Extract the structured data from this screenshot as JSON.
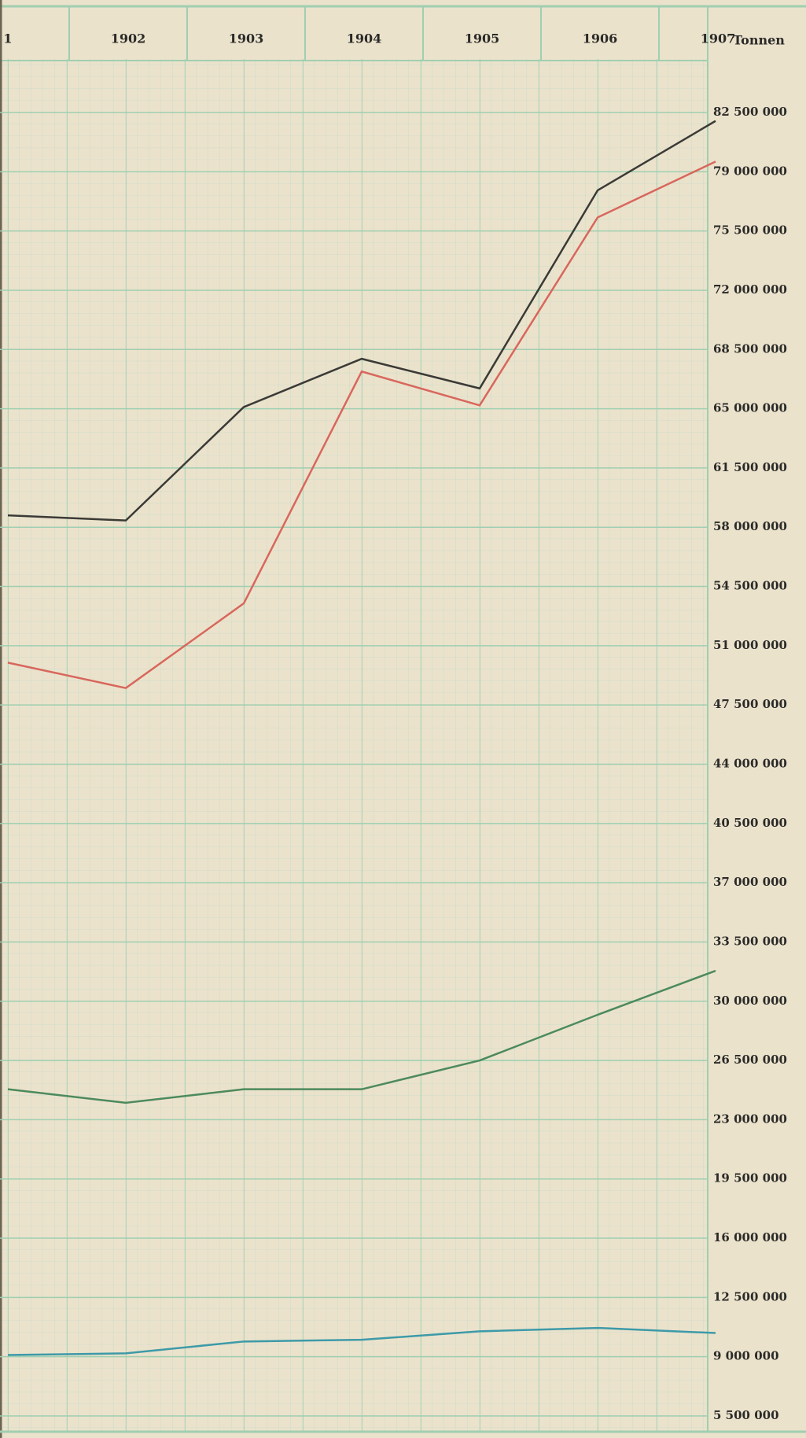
{
  "chart_data": {
    "type": "line",
    "categories": [
      "1",
      "1902",
      "1903",
      "1904",
      "1905",
      "1906",
      "1907"
    ],
    "y_label": "Tonnen",
    "series": [
      {
        "color": "#3a3a36",
        "values": [
          58700000,
          58400000,
          65100000,
          67950000,
          66200000,
          77900000,
          82000000
        ]
      },
      {
        "color": "#d8675c",
        "values": [
          50000000,
          48500000,
          53500000,
          67200000,
          65200000,
          76300000,
          79600000
        ]
      },
      {
        "color": "#4c8a5c",
        "values": [
          24800000,
          24000000,
          24800000,
          24800000,
          26500000,
          29200000,
          31800000
        ]
      },
      {
        "color": "#3d9aa8",
        "values": [
          9100000,
          9200000,
          9900000,
          10000000,
          10500000,
          10700000,
          10400000
        ]
      }
    ],
    "ylim": [
      5500000,
      82500000
    ],
    "yticks": [
      {
        "value": 5500000,
        "label": "5 500 000"
      },
      {
        "value": 9000000,
        "label": "9 000 000"
      },
      {
        "value": 12500000,
        "label": "12 500 000"
      },
      {
        "value": 16000000,
        "label": "16 000 000"
      },
      {
        "value": 19500000,
        "label": "19 500 000"
      },
      {
        "value": 23000000,
        "label": "23 000 000"
      },
      {
        "value": 26500000,
        "label": "26 500 000"
      },
      {
        "value": 30000000,
        "label": "30 000 000"
      },
      {
        "value": 33500000,
        "label": "33 500 000"
      },
      {
        "value": 37000000,
        "label": "37 000 000"
      },
      {
        "value": 40500000,
        "label": "40 500 000"
      },
      {
        "value": 44000000,
        "label": "44 000 000"
      },
      {
        "value": 47500000,
        "label": "47 500 000"
      },
      {
        "value": 51000000,
        "label": "51 000 000"
      },
      {
        "value": 54500000,
        "label": "54 500 000"
      },
      {
        "value": 58000000,
        "label": "58 000 000"
      },
      {
        "value": 61500000,
        "label": "61 500 000"
      },
      {
        "value": 65000000,
        "label": "65 000 000"
      },
      {
        "value": 68500000,
        "label": "68 500 000"
      },
      {
        "value": 72000000,
        "label": "72 000 000"
      },
      {
        "value": 75500000,
        "label": "75 500 000"
      },
      {
        "value": 79000000,
        "label": "79 000 000"
      },
      {
        "value": 82500000,
        "label": "82 500 000"
      }
    ],
    "grid": true
  }
}
